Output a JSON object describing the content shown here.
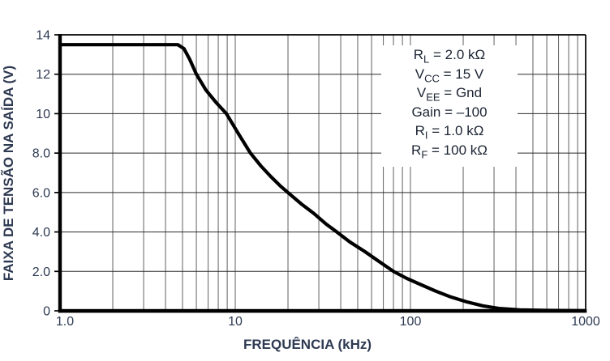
{
  "figure": {
    "bg": "#ffffff",
    "text_color": "#2e3a52",
    "annotation_text_color": "#1b2433",
    "curve_color": "#000000",
    "frame_color": "#000000",
    "grid_v_color": "#6f6f6f",
    "grid_h_color": "#2b2b2b"
  },
  "chart_data": {
    "type": "line",
    "title": "",
    "xlabel": "FREQUÊNCIA (kHz)",
    "ylabel": "FAIXA DE TENSÃO NA SAÍDA (V)",
    "x_scale": "log",
    "xlim": [
      1,
      1000
    ],
    "ylim": [
      0,
      14
    ],
    "grid": true,
    "legend_position": "none",
    "x_ticks": [
      {
        "v": 1,
        "label": "1.0"
      },
      {
        "v": 10,
        "label": "10"
      },
      {
        "v": 100,
        "label": "100"
      },
      {
        "v": 1000,
        "label": "1000"
      }
    ],
    "y_ticks": [
      {
        "v": 0,
        "label": "0"
      },
      {
        "v": 2,
        "label": "2.0"
      },
      {
        "v": 4,
        "label": "4.0"
      },
      {
        "v": 6,
        "label": "6.0"
      },
      {
        "v": 8,
        "label": "8.0"
      },
      {
        "v": 10,
        "label": "10"
      },
      {
        "v": 12,
        "label": "12"
      },
      {
        "v": 14,
        "label": "14"
      }
    ],
    "series": [
      {
        "name": "faixa-de-tensao-na-saida",
        "points": [
          [
            1,
            13.5
          ],
          [
            2,
            13.5
          ],
          [
            3,
            13.5
          ],
          [
            4,
            13.5
          ],
          [
            4.7,
            13.5
          ],
          [
            5.1,
            13.3
          ],
          [
            5.5,
            12.75
          ],
          [
            6,
            12
          ],
          [
            6.8,
            11.2
          ],
          [
            7.8,
            10.55
          ],
          [
            8.9,
            10
          ],
          [
            10.4,
            9
          ],
          [
            12.2,
            8
          ],
          [
            14,
            7.35
          ],
          [
            16,
            6.8
          ],
          [
            18,
            6.35
          ],
          [
            20,
            6
          ],
          [
            24,
            5.4
          ],
          [
            28,
            4.95
          ],
          [
            33,
            4.4
          ],
          [
            38,
            4
          ],
          [
            45,
            3.5
          ],
          [
            55,
            3
          ],
          [
            65,
            2.55
          ],
          [
            80,
            2
          ],
          [
            95,
            1.65
          ],
          [
            110,
            1.4
          ],
          [
            139,
            1
          ],
          [
            170,
            0.7
          ],
          [
            210,
            0.45
          ],
          [
            260,
            0.25
          ],
          [
            320,
            0.12
          ],
          [
            420,
            0.05
          ],
          [
            600,
            0.02
          ],
          [
            1000,
            0.01
          ]
        ]
      }
    ],
    "annotation": {
      "lines": [
        {
          "base": "R",
          "sub": "L",
          "rest": " = 2.0 kΩ"
        },
        {
          "base": "V",
          "sub": "CC",
          "rest": " = 15 V"
        },
        {
          "base": "V",
          "sub": "EE",
          "rest": " = Gnd"
        },
        {
          "base": "Gain",
          "sub": "",
          "rest": " = –100"
        },
        {
          "base": "R",
          "sub": "I",
          "rest": " = 1.0 kΩ"
        },
        {
          "base": "R",
          "sub": "F",
          "rest": " = 100 kΩ"
        }
      ]
    }
  }
}
